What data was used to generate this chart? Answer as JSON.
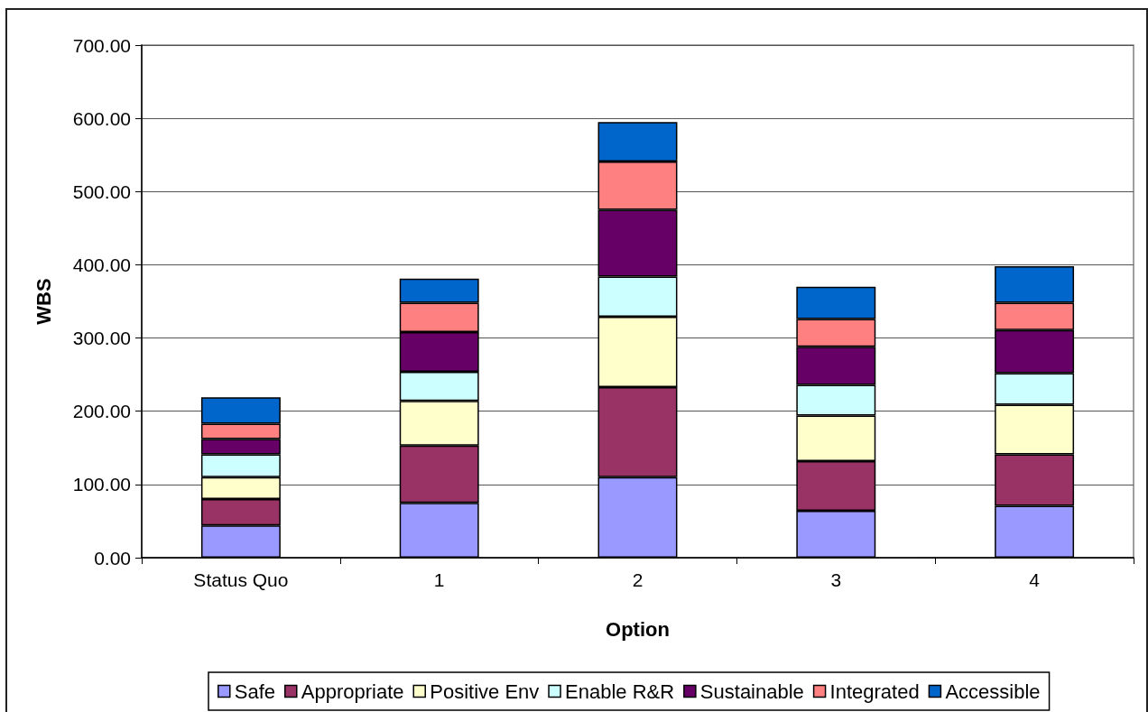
{
  "chart_data": {
    "type": "bar",
    "stacked": true,
    "xlabel": "Option",
    "ylabel": "WBS",
    "categories": [
      "Status Quo",
      "1",
      "2",
      "3",
      "4"
    ],
    "series": [
      {
        "name": "Safe",
        "color": "#9999ff",
        "values": [
          44,
          75,
          110,
          64,
          71
        ]
      },
      {
        "name": "Appropriate",
        "color": "#993366",
        "values": [
          36,
          78,
          123,
          68,
          70
        ]
      },
      {
        "name": "Positive Env",
        "color": "#ffffcc",
        "values": [
          30,
          61,
          96,
          62,
          68
        ]
      },
      {
        "name": "Enable R&R",
        "color": "#ccffff",
        "values": [
          31,
          40,
          55,
          42,
          43
        ]
      },
      {
        "name": "Sustainable",
        "color": "#660066",
        "values": [
          21,
          54,
          91,
          52,
          59
        ]
      },
      {
        "name": "Integrated",
        "color": "#ff8080",
        "values": [
          21,
          40,
          66,
          38,
          37
        ]
      },
      {
        "name": "Accessible",
        "color": "#0066cc",
        "values": [
          36,
          33,
          54,
          44,
          50
        ]
      }
    ],
    "ylim": [
      0,
      700
    ],
    "yticks": [
      {
        "value": 0,
        "label": "0.00"
      },
      {
        "value": 100,
        "label": "100.00"
      },
      {
        "value": 200,
        "label": "200.00"
      },
      {
        "value": 300,
        "label": "300.00"
      },
      {
        "value": 400,
        "label": "400.00"
      },
      {
        "value": 500,
        "label": "500.00"
      },
      {
        "value": 600,
        "label": "600.00"
      },
      {
        "value": 700,
        "label": "700.00"
      }
    ],
    "grid": "y",
    "legend": "bottom"
  }
}
